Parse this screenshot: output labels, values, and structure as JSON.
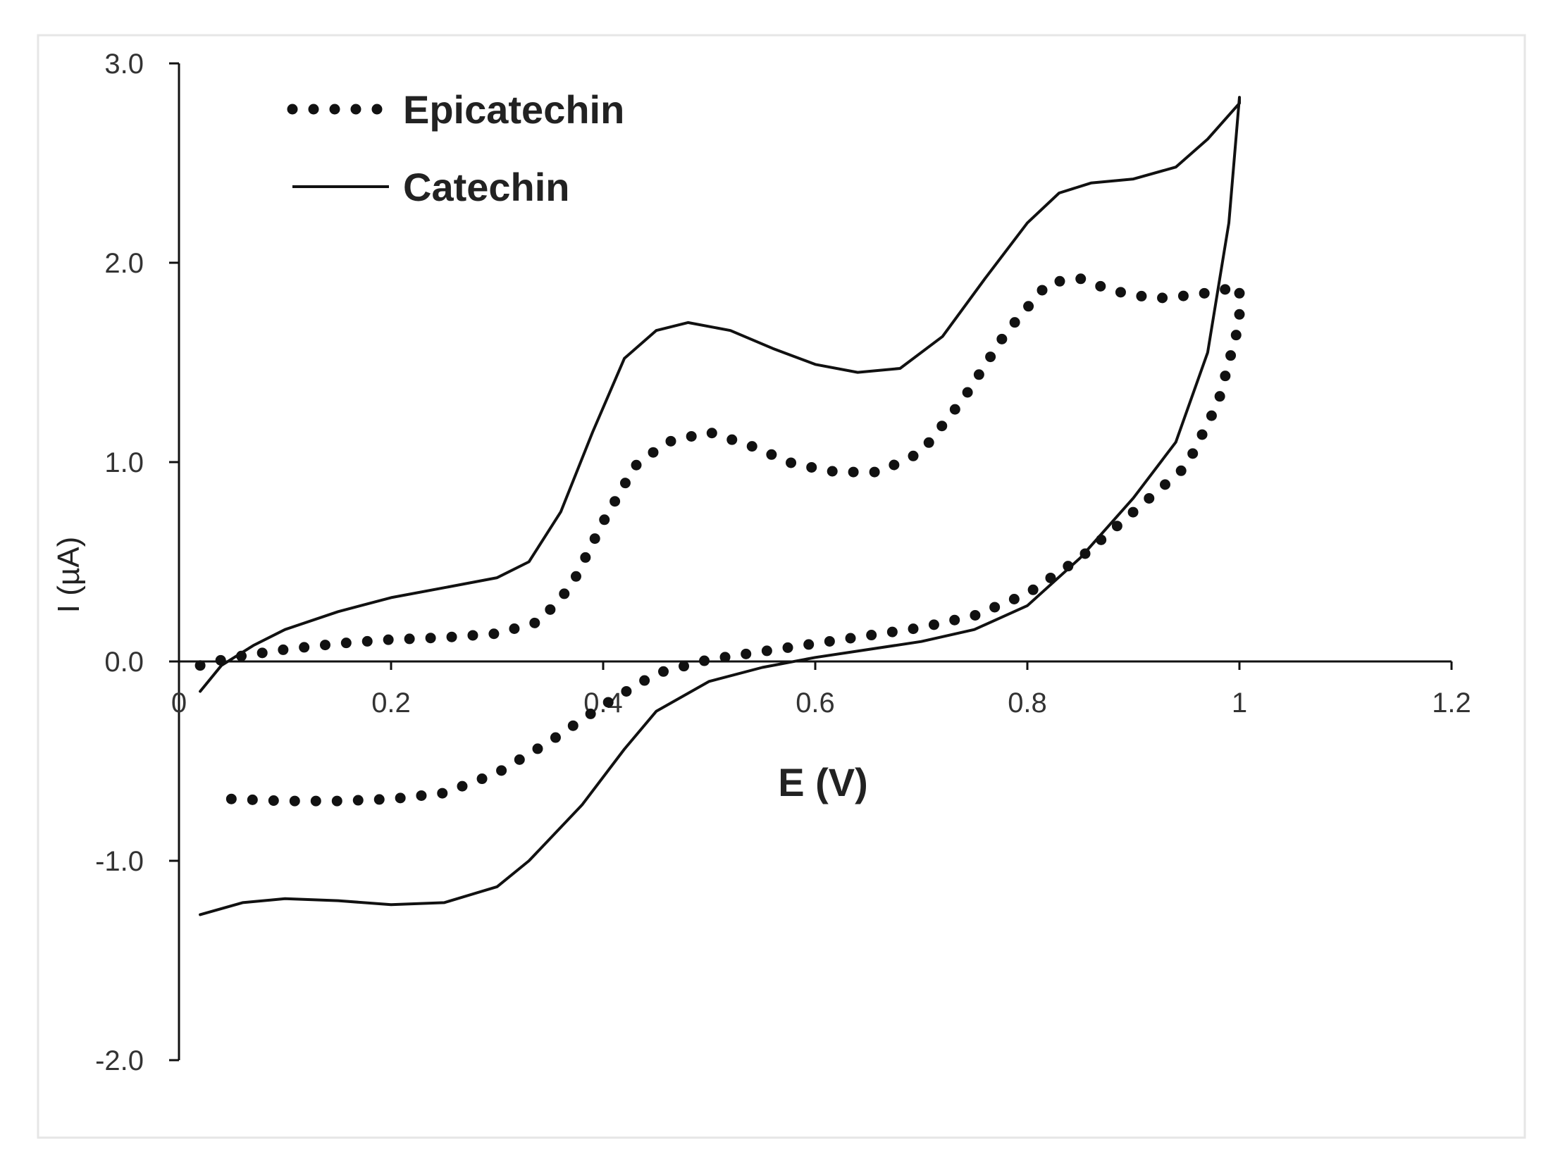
{
  "chart_data": {
    "type": "line",
    "title": "",
    "xlabel": "E (V)",
    "ylabel": "I (µA)",
    "xlim": [
      0,
      1.2
    ],
    "ylim": [
      -2.0,
      3.0
    ],
    "x_ticks": [
      0,
      0.2,
      0.4,
      0.6,
      0.8,
      1,
      1.2
    ],
    "x_tick_labels": [
      "0",
      "0.2",
      "0.4",
      "0.6",
      "0.8",
      "1",
      "1.2"
    ],
    "y_ticks": [
      -2.0,
      -1.0,
      0.0,
      1.0,
      2.0,
      3.0
    ],
    "y_tick_labels": [
      "-2.0",
      "-1.0",
      "0.0",
      "1.0",
      "2.0",
      "3.0"
    ],
    "grid": false,
    "legend_position": "top-left",
    "series": [
      {
        "name": "Epicatechin",
        "style": "dotted",
        "color": "#111111",
        "x": [
          0.02,
          0.05,
          0.1,
          0.15,
          0.2,
          0.25,
          0.3,
          0.34,
          0.37,
          0.4,
          0.43,
          0.46,
          0.5,
          0.54,
          0.58,
          0.62,
          0.66,
          0.7,
          0.74,
          0.78,
          0.82,
          0.85,
          0.88,
          0.92,
          0.96,
          1.0,
          1.0,
          0.98,
          0.95,
          0.9,
          0.85,
          0.8,
          0.75,
          0.7,
          0.65,
          0.6,
          0.55,
          0.5,
          0.45,
          0.4,
          0.35,
          0.3,
          0.25,
          0.2,
          0.15,
          0.1,
          0.05,
          0.03
        ],
        "y": [
          -0.02,
          0.02,
          0.06,
          0.09,
          0.11,
          0.12,
          0.14,
          0.2,
          0.38,
          0.7,
          0.98,
          1.1,
          1.15,
          1.08,
          0.99,
          0.95,
          0.95,
          1.05,
          1.32,
          1.65,
          1.9,
          1.92,
          1.86,
          1.82,
          1.84,
          1.88,
          1.7,
          1.3,
          0.98,
          0.75,
          0.52,
          0.34,
          0.23,
          0.17,
          0.13,
          0.09,
          0.05,
          0.01,
          -0.06,
          -0.22,
          -0.4,
          -0.56,
          -0.66,
          -0.69,
          -0.7,
          -0.7,
          -0.69,
          -0.68
        ]
      },
      {
        "name": "Catechin",
        "style": "solid",
        "color": "#111111",
        "x": [
          0.02,
          0.04,
          0.07,
          0.1,
          0.15,
          0.2,
          0.25,
          0.3,
          0.33,
          0.36,
          0.39,
          0.42,
          0.45,
          0.48,
          0.52,
          0.56,
          0.6,
          0.64,
          0.68,
          0.72,
          0.76,
          0.8,
          0.83,
          0.86,
          0.9,
          0.94,
          0.97,
          1.0,
          1.0,
          0.99,
          0.97,
          0.94,
          0.9,
          0.85,
          0.8,
          0.75,
          0.7,
          0.65,
          0.6,
          0.55,
          0.5,
          0.45,
          0.42,
          0.38,
          0.33,
          0.3,
          0.25,
          0.2,
          0.15,
          0.1,
          0.06,
          0.02
        ],
        "y": [
          -0.15,
          -0.02,
          0.08,
          0.16,
          0.25,
          0.32,
          0.37,
          0.42,
          0.5,
          0.75,
          1.15,
          1.52,
          1.66,
          1.7,
          1.66,
          1.57,
          1.49,
          1.45,
          1.47,
          1.63,
          1.92,
          2.2,
          2.35,
          2.4,
          2.42,
          2.48,
          2.62,
          2.8,
          2.83,
          2.2,
          1.55,
          1.1,
          0.82,
          0.52,
          0.28,
          0.16,
          0.1,
          0.06,
          0.02,
          -0.03,
          -0.1,
          -0.25,
          -0.44,
          -0.72,
          -1.0,
          -1.13,
          -1.21,
          -1.22,
          -1.2,
          -1.19,
          -1.21,
          -1.27
        ]
      }
    ]
  }
}
